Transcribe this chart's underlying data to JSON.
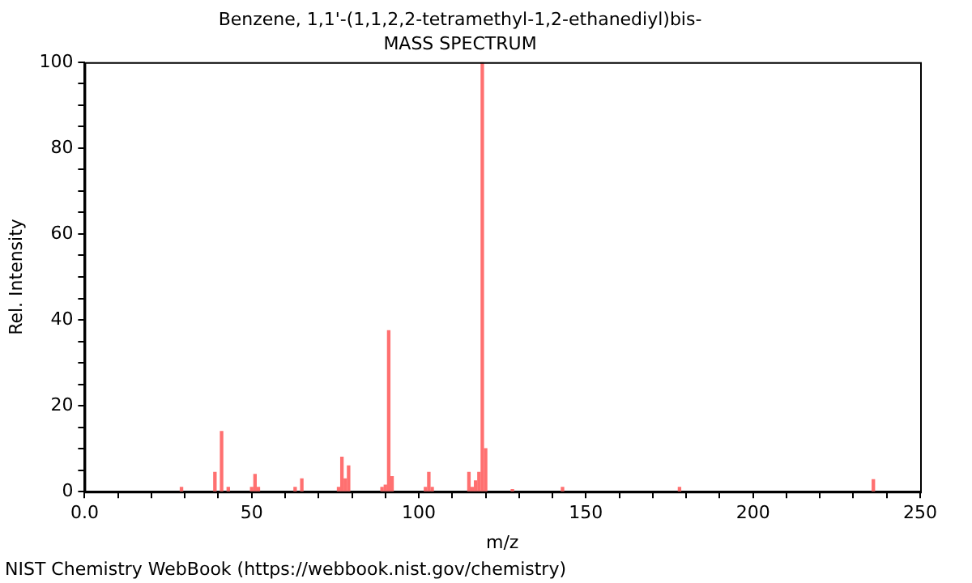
{
  "chart_data": {
    "type": "bar",
    "title": "Benzene, 1,1'-(1,1,2,2-tetramethyl-1,2-ethanediyl)bis-",
    "subtitle": "MASS SPECTRUM",
    "xlabel": "m/z",
    "ylabel": "Rel. Intensity",
    "x": [
      29,
      39,
      41,
      43,
      50,
      51,
      52,
      63,
      65,
      76,
      77,
      78,
      79,
      89,
      90,
      91,
      92,
      102,
      103,
      104,
      115,
      116,
      117,
      118,
      119,
      120,
      128,
      143,
      178,
      236
    ],
    "values": [
      1,
      4.5,
      14,
      1,
      1,
      4,
      1,
      1,
      3,
      1,
      8,
      3,
      6,
      1,
      1.5,
      37.5,
      3.5,
      1,
      4.5,
      1,
      4.5,
      1,
      2.5,
      4.5,
      100,
      10,
      0.5,
      1,
      1,
      2.8
    ],
    "color": "#ff7070",
    "xlim": [
      0,
      250
    ],
    "xticks": [
      {
        "value": 0,
        "label": "0.0"
      },
      {
        "value": 10,
        "label": null
      },
      {
        "value": 20,
        "label": null
      },
      {
        "value": 30,
        "label": null
      },
      {
        "value": 40,
        "label": null
      },
      50,
      {
        "value": 60,
        "label": null
      },
      {
        "value": 70,
        "label": null
      },
      {
        "value": 80,
        "label": null
      },
      {
        "value": 90,
        "label": null
      },
      100,
      {
        "value": 110,
        "label": null
      },
      {
        "value": 120,
        "label": null
      },
      {
        "value": 130,
        "label": null
      },
      {
        "value": 140,
        "label": null
      },
      150,
      {
        "value": 160,
        "label": null
      },
      {
        "value": 170,
        "label": null
      },
      {
        "value": 180,
        "label": null
      },
      {
        "value": 190,
        "label": null
      },
      200,
      {
        "value": 210,
        "label": null
      },
      {
        "value": 220,
        "label": null
      },
      {
        "value": 230,
        "label": null
      },
      {
        "value": 240,
        "label": null
      },
      250
    ],
    "ylim": [
      0,
      100
    ],
    "yticks": [
      0,
      {
        "value": 5,
        "label": null
      },
      {
        "value": 10,
        "label": null
      },
      {
        "value": 15,
        "label": null
      },
      20,
      {
        "value": 25,
        "label": null
      },
      {
        "value": 30,
        "label": null
      },
      {
        "value": 35,
        "label": null
      },
      40,
      {
        "value": 45,
        "label": null
      },
      {
        "value": 50,
        "label": null
      },
      {
        "value": 55,
        "label": null
      },
      60,
      {
        "value": 65,
        "label": null
      },
      {
        "value": 70,
        "label": null
      },
      {
        "value": 75,
        "label": null
      },
      80,
      {
        "value": 85,
        "label": null
      },
      {
        "value": 90,
        "label": null
      },
      {
        "value": 95,
        "label": null
      },
      100
    ],
    "grid": false,
    "legend": false,
    "annotations": [
      "NIST Chemistry WebBook (https://webbook.nist.gov/chemistry)"
    ]
  }
}
